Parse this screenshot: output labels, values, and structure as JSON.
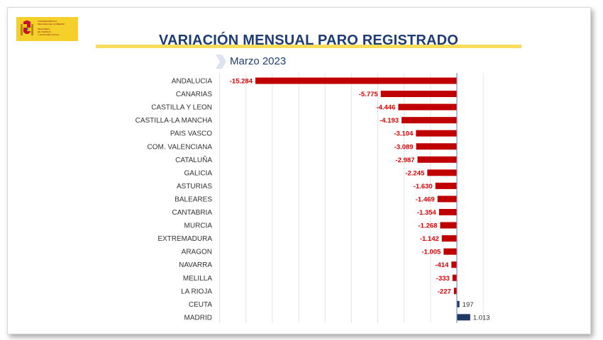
{
  "logo": {
    "lines": [
      "VICEPRESIDENCIA",
      "SEGUNDA DEL GOBIERNO",
      "MINISTERIO",
      "DE TRABAJO",
      "Y ECONOMÍA SOCIAL"
    ]
  },
  "header": {
    "title": "VARIACIÓN MENSUAL PARO REGISTRADO",
    "subtitle": "Marzo 2023"
  },
  "colors": {
    "negative": "#c00000",
    "positive": "#1f3864",
    "title": "#1d3c73",
    "accent": "#f7dd5b",
    "negative_label": "#e00000",
    "positive_label": "#333333"
  },
  "chart_data": {
    "type": "bar",
    "orientation": "horizontal",
    "categories": [
      "ANDALUCIA",
      "CANARIAS",
      "CASTILLA Y LEON",
      "CASTILLA-LA MANCHA",
      "PAIS VASCO",
      "COM. VALENCIANA",
      "CATALUÑA",
      "GALICIA",
      "ASTURIAS",
      "BALEARES",
      "CANTABRIA",
      "MURCIA",
      "EXTREMADURA",
      "ARAGON",
      "NAVARRA",
      "MELILLA",
      "LA RIOJA",
      "CEUTA",
      "MADRID"
    ],
    "values": [
      -15284,
      -5775,
      -4446,
      -4193,
      -3104,
      -3089,
      -2987,
      -2245,
      -1630,
      -1469,
      -1354,
      -1268,
      -1142,
      -1005,
      -414,
      -333,
      -227,
      197,
      1013
    ],
    "labels": [
      "-15.284",
      "-5.775",
      "-4.446",
      "-4.193",
      "-3.104",
      "-3.089",
      "-2.987",
      "-2.245",
      "-1.630",
      "-1.469",
      "-1.354",
      "-1.268",
      "-1.142",
      "-1.005",
      "-414",
      "-333",
      "-227",
      "197",
      "1.013"
    ],
    "xlim": [
      -18000,
      2000
    ],
    "grid_step": 2000,
    "grid": true,
    "legend": "none"
  }
}
